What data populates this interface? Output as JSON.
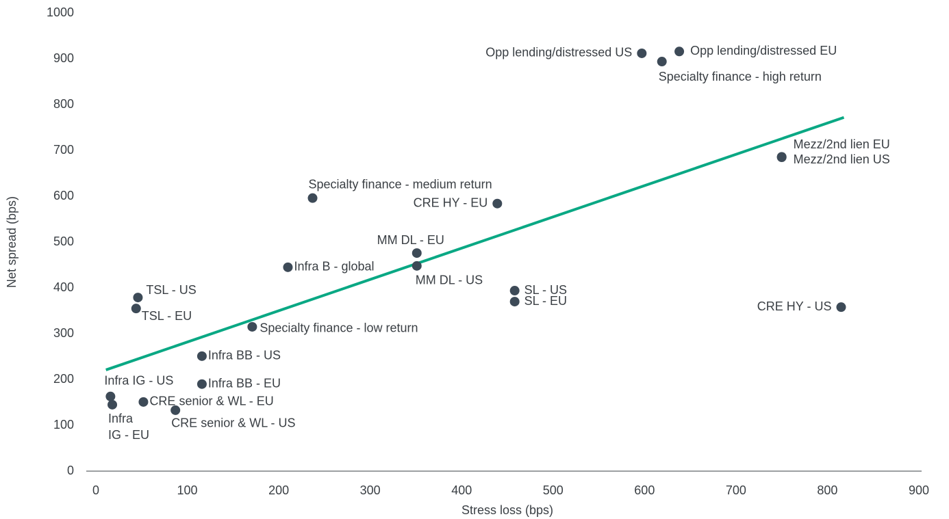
{
  "chart_data": {
    "type": "scatter",
    "xlabel": "Stress loss (bps)",
    "ylabel": "Net spread (bps)",
    "xlim": [
      0,
      900
    ],
    "xticks": [
      0,
      100,
      200,
      300,
      400,
      500,
      600,
      700,
      800,
      900
    ],
    "ylim": [
      0,
      1000
    ],
    "yticks": [
      0,
      100,
      200,
      300,
      400,
      500,
      600,
      700,
      800,
      900,
      1000
    ],
    "grid": false,
    "color": "#3d4a57",
    "labels": [
      "Opp lending/distressed US",
      "Opp lending/distressed EU",
      "Specialty finance - high return",
      "Mezz/2nd lien EU",
      "Mezz/2nd lien US",
      "Specialty finance - medium return",
      "CRE HY - EU",
      "MM DL - EU",
      "MM DL - US",
      "Infra B - global",
      "SL - US",
      "SL - EU",
      "CRE HY - US",
      "TSL - US",
      "TSL - EU",
      "Specialty finance - low return",
      "Infra BB - US",
      "Infra BB - EU",
      "Infra IG - US",
      "Infra\nIG - EU",
      "CRE senior & WL - EU",
      "CRE senior & WL - US"
    ],
    "x": [
      597,
      638,
      619,
      750,
      750,
      237,
      439,
      351,
      351,
      210,
      458,
      458,
      815,
      46,
      44,
      171,
      116,
      116,
      16,
      18,
      52,
      87
    ],
    "values": [
      912,
      916,
      894,
      686,
      685,
      596,
      584,
      476,
      448,
      445,
      394,
      370,
      358,
      379,
      355,
      315,
      251,
      190,
      163,
      145,
      151,
      133
    ],
    "trendline": {
      "color": "#0aa884",
      "x": [
        11,
        818
      ],
      "y": [
        221,
        772
      ]
    }
  }
}
